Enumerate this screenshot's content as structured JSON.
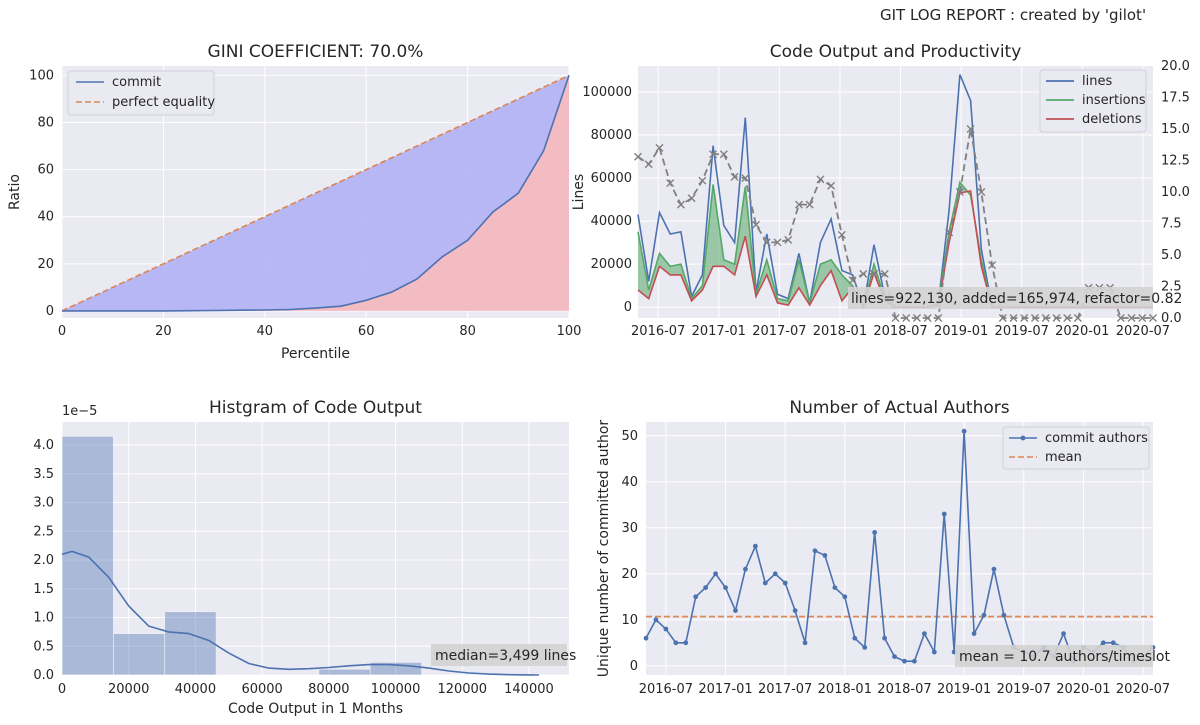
{
  "figure_title": "GIT LOG REPORT : created by 'gilot'",
  "colors": {
    "blue": "#4c72b0",
    "orange": "#dd8452",
    "green": "#55a868",
    "red": "#c44e52",
    "panel_bg": "#eaeaf2",
    "gray": "#808080"
  },
  "chart_data": [
    {
      "type": "area",
      "title": "GINI COEFFICIENT: 70.0%",
      "xlabel": "Percentile",
      "ylabel": "Ratio",
      "xlim": [
        0,
        100
      ],
      "ylim": [
        -3,
        104
      ],
      "xticks": [
        0,
        20,
        40,
        60,
        80,
        100
      ],
      "yticks": [
        0,
        20,
        40,
        60,
        80,
        100
      ],
      "grid": true,
      "legend": {
        "position": "upper-left",
        "entries": [
          "commit",
          "perfect equality"
        ]
      },
      "series": [
        {
          "name": "commit",
          "style": "solid",
          "x": [
            0,
            5,
            10,
            15,
            20,
            25,
            30,
            35,
            40,
            45,
            50,
            55,
            60,
            65,
            70,
            75,
            80,
            85,
            90,
            95,
            100
          ],
          "y": [
            0,
            0,
            0,
            0,
            0,
            0.1,
            0.2,
            0.3,
            0.4,
            0.6,
            1.2,
            2,
            4.5,
            8,
            13.5,
            23,
            30,
            42,
            50,
            68,
            100
          ]
        },
        {
          "name": "perfect equality",
          "style": "dashed",
          "x": [
            0,
            100
          ],
          "y": [
            0,
            100
          ]
        }
      ]
    },
    {
      "type": "line",
      "title": "Code Output and Productivity",
      "ylabel": "Lines",
      "x_tick_labels": [
        "2016-07",
        "2017-01",
        "2017-07",
        "2018-01",
        "2018-07",
        "2019-01",
        "2019-07",
        "2020-01",
        "2020-07"
      ],
      "ylim": [
        -5000,
        112000
      ],
      "yticks": [
        0,
        20000,
        40000,
        60000,
        80000,
        100000
      ],
      "y2lim": [
        0,
        20
      ],
      "y2ticks": [
        0.0,
        2.5,
        5.0,
        7.5,
        10.0,
        12.5,
        15.0,
        17.5,
        20.0
      ],
      "legend": {
        "position": "upper-right",
        "entries": [
          "lines",
          "insertions",
          "deletions"
        ]
      },
      "annotation": "lines=922,130, added=165,974, refactor=0.82",
      "series": [
        {
          "name": "lines",
          "values": [
            43000,
            12000,
            44000,
            34000,
            35000,
            5000,
            15000,
            75000,
            38000,
            30000,
            88000,
            7000,
            34000,
            6000,
            4000,
            25000,
            2000,
            30000,
            41000,
            17000,
            15000,
            0,
            29000,
            5000,
            0,
            0,
            0,
            0,
            2000,
            45000,
            108000,
            96000,
            27000,
            0,
            0,
            0,
            0,
            0,
            0,
            0,
            0,
            0,
            0,
            0,
            0,
            0,
            0,
            0,
            0
          ]
        },
        {
          "name": "insertions",
          "values": [
            35000,
            8000,
            25000,
            19000,
            20000,
            4000,
            10000,
            57000,
            22000,
            20000,
            56000,
            6000,
            22000,
            4000,
            3000,
            22000,
            2000,
            20000,
            22000,
            15000,
            10000,
            0,
            20000,
            4000,
            0,
            0,
            0,
            0,
            2000,
            35000,
            58000,
            52000,
            22000,
            0,
            0,
            0,
            0,
            0,
            0,
            0,
            0,
            0,
            0,
            0,
            0,
            0,
            0,
            0,
            0
          ]
        },
        {
          "name": "deletions",
          "values": [
            8000,
            4000,
            19000,
            15000,
            15000,
            3000,
            8000,
            19000,
            19000,
            15000,
            33000,
            5000,
            15000,
            2000,
            1000,
            9000,
            1000,
            10000,
            17000,
            3000,
            9000,
            0,
            16000,
            3000,
            0,
            0,
            0,
            0,
            1000,
            30000,
            53000,
            54000,
            19000,
            0,
            0,
            0,
            0,
            0,
            0,
            0,
            0,
            0,
            0,
            0,
            0,
            0,
            0,
            0,
            0
          ]
        },
        {
          "name": "refactor",
          "axis": "right",
          "values": [
            12.8,
            12.2,
            13.5,
            10.7,
            9.0,
            9.5,
            10.9,
            13.0,
            13.0,
            11.2,
            11.1,
            7.4,
            6.0,
            6.0,
            6.2,
            9.0,
            9.0,
            11.0,
            10.5,
            6.6,
            3.0,
            3.5,
            3.5,
            3.5,
            0,
            0,
            0,
            0,
            0,
            6.8,
            10.0,
            15.0,
            10.0,
            4.2,
            0,
            0,
            0,
            0,
            0,
            0,
            0,
            0,
            2.4,
            2.4,
            2.4,
            0,
            0,
            0,
            0
          ]
        }
      ]
    },
    {
      "type": "bar",
      "title": "Histgram of Code Output",
      "xlabel": "Code Output in 1 Months",
      "y_offset_label": "1e−5",
      "xlim": [
        0,
        152000
      ],
      "ylim": [
        0,
        4.4
      ],
      "xticks": [
        0,
        20000,
        40000,
        60000,
        80000,
        100000,
        120000,
        140000
      ],
      "yticks": [
        0.0,
        0.5,
        1.0,
        1.5,
        2.0,
        2.5,
        3.0,
        3.5,
        4.0
      ],
      "annotation": "median=3,499 lines",
      "bins": [
        {
          "from": 0,
          "to": 15400,
          "value": 4.15
        },
        {
          "from": 15400,
          "to": 30800,
          "value": 0.72
        },
        {
          "from": 30800,
          "to": 46200,
          "value": 1.1
        },
        {
          "from": 46200,
          "to": 61600,
          "value": 0
        },
        {
          "from": 61600,
          "to": 77000,
          "value": 0
        },
        {
          "from": 77000,
          "to": 92400,
          "value": 0.1
        },
        {
          "from": 92400,
          "to": 107800,
          "value": 0.22
        }
      ],
      "kde": {
        "x": [
          0,
          3000,
          8000,
          14000,
          20000,
          26000,
          32000,
          38000,
          44000,
          50000,
          56000,
          62000,
          68000,
          74000,
          80000,
          86000,
          92000,
          98000,
          104000,
          110000,
          116000,
          122000,
          128000,
          134000,
          140000,
          143000
        ],
        "y": [
          2.1,
          2.15,
          2.05,
          1.7,
          1.2,
          0.85,
          0.75,
          0.72,
          0.6,
          0.38,
          0.2,
          0.12,
          0.1,
          0.11,
          0.13,
          0.16,
          0.18,
          0.18,
          0.16,
          0.12,
          0.07,
          0.035,
          0.015,
          0.005,
          0.001,
          0
        ]
      }
    },
    {
      "type": "line",
      "title": "Number of Actual Authors",
      "ylabel": "Unique number of committed author",
      "x_tick_labels": [
        "2016-07",
        "2017-01",
        "2017-07",
        "2018-01",
        "2018-07",
        "2019-01",
        "2019-07",
        "2020-01",
        "2020-07"
      ],
      "ylim": [
        -2,
        53
      ],
      "yticks": [
        0,
        10,
        20,
        30,
        40,
        50
      ],
      "legend": {
        "position": "upper-right",
        "entries": [
          "commit authors",
          "mean"
        ]
      },
      "annotation": "mean = 10.7 authors/timeslot",
      "mean": 10.7,
      "series": [
        {
          "name": "commit authors",
          "values": [
            6,
            10,
            8,
            5,
            5,
            15,
            17,
            20,
            17,
            12,
            21,
            26,
            18,
            20,
            18,
            12,
            5,
            25,
            24,
            17,
            15,
            6,
            4,
            29,
            6,
            2,
            1,
            1,
            7,
            3,
            33,
            3,
            51,
            7,
            11,
            21,
            11,
            4,
            3,
            2,
            4,
            2,
            7,
            1,
            4,
            3,
            5,
            5,
            4,
            1,
            2,
            4
          ]
        }
      ]
    }
  ]
}
